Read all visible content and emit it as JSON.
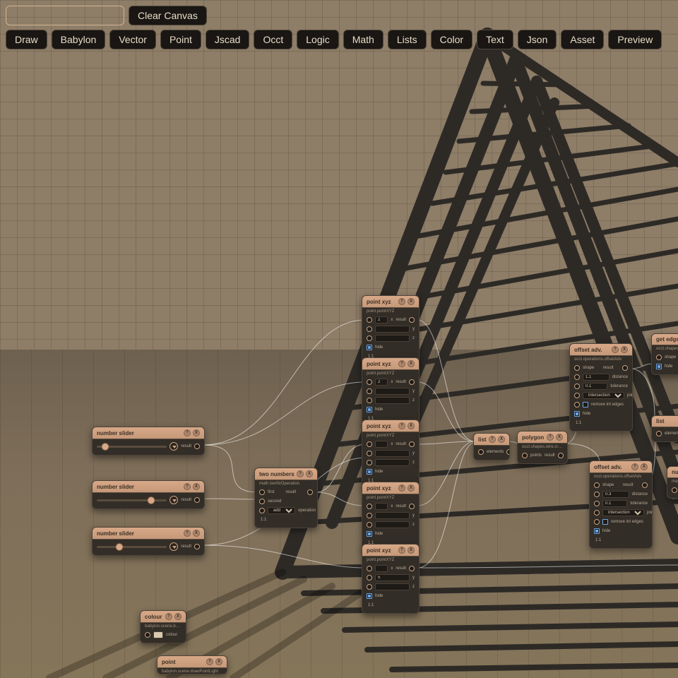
{
  "colors": {
    "bg": "#8e7d67",
    "node_bg": "#332d27",
    "node_header_top": "#d8a989",
    "node_header_bottom": "#c59879",
    "wire": "rgba(255,255,255,0.55)",
    "structure": "#2d2a26"
  },
  "toolbar": {
    "search_placeholder": "",
    "clear_label": "Clear Canvas",
    "categories": [
      "Draw",
      "Babylon",
      "Vector",
      "Point",
      "Jscad",
      "Occt",
      "Logic",
      "Math",
      "Lists",
      "Color",
      "Text",
      "Json",
      "Asset",
      "Preview"
    ]
  },
  "labels": {
    "result": "result",
    "hide": "hide",
    "one_one": "1:1",
    "x": "x",
    "y": "y",
    "z": "z",
    "first": "first",
    "second": "second",
    "operation": "operation",
    "points": "points",
    "shape": "shape",
    "distance": "distance",
    "tolerance": "tolerance",
    "join_type": "join type",
    "remove_int_edges": "remove int edges",
    "elements": "elements",
    "list_label": "list",
    "colour": "colour",
    "help": "?",
    "close": "X"
  },
  "nodes": {
    "slider1": {
      "title": "number slider",
      "sub": "",
      "thumb_pct": 12
    },
    "slider2": {
      "title": "number slider",
      "sub": "",
      "thumb_pct": 78
    },
    "slider3": {
      "title": "number slider",
      "sub": "",
      "thumb_pct": 32
    },
    "two_numbers": {
      "title": "two numbers",
      "sub": "math.twoNrOperation",
      "op": "add"
    },
    "pxyz1": {
      "title": "point xyz",
      "sub": "point.pointXYZ",
      "x": "2",
      "y": "",
      "z": ""
    },
    "pxyz2": {
      "title": "point xyz",
      "sub": "point.pointXYZ",
      "x": "2",
      "y": "",
      "z": ""
    },
    "pxyz3": {
      "title": "point xyz",
      "sub": "point.pointXYZ",
      "x": "",
      "y": "",
      "z": ""
    },
    "pxyz4": {
      "title": "point xyz",
      "sub": "point.pointXYZ",
      "x": "",
      "y": "",
      "z": ""
    },
    "pxyz5": {
      "title": "point xyz",
      "sub": "point.pointXYZ",
      "x": "",
      "y": "5",
      "z": ""
    },
    "list_small": {
      "title": "list",
      "sub": ""
    },
    "polygon": {
      "title": "polygon",
      "sub": "occt.shapes.wire.createPolygonWire"
    },
    "offset1": {
      "title": "offset adv.",
      "sub": "occt.operations.offsetAdv",
      "distance": "1.1",
      "tolerance": "0.1",
      "join": "intersection"
    },
    "offset2": {
      "title": "offset adv.",
      "sub": "occt.operations.offsetAdv",
      "distance": "0.3",
      "tolerance": "0.1",
      "join": "intersection"
    },
    "list2": {
      "title": "list",
      "sub": ""
    },
    "get_edges": {
      "title": "get edges",
      "sub": "occt.shapes.edge.getEdges"
    },
    "number_stub": {
      "title": "num",
      "sub": "math.number",
      "val": "0.3"
    },
    "colour_node": {
      "title": "colour",
      "sub": "babylon.scene.backgroundColour"
    },
    "point_light": {
      "title": "point",
      "sub": "babylon.scene.drawPointLight"
    }
  }
}
